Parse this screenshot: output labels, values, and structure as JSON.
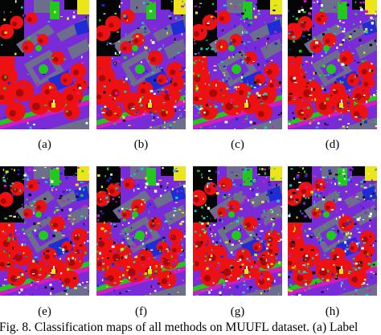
{
  "figure": {
    "panels": [
      {
        "label": "(a)"
      },
      {
        "label": "(b)"
      },
      {
        "label": "(c)"
      },
      {
        "label": "(d)"
      },
      {
        "label": "(e)"
      },
      {
        "label": "(f)"
      },
      {
        "label": "(g)"
      },
      {
        "label": "(h)"
      }
    ],
    "caption": "Fig. 8.   Classification maps of all methods on MUUFL dataset. (a) Label"
  },
  "colors": {
    "red": "#ee1111",
    "dark_red": "#a80808",
    "purple": "#7a2bd8",
    "blue": "#1f2bd6",
    "green": "#22c81e",
    "gray": "#6c6e8c",
    "yellow": "#ece51a",
    "magenta": "#d41bc2",
    "cyan": "#17c9c9",
    "black": "#050505",
    "white": "#ffffff"
  }
}
